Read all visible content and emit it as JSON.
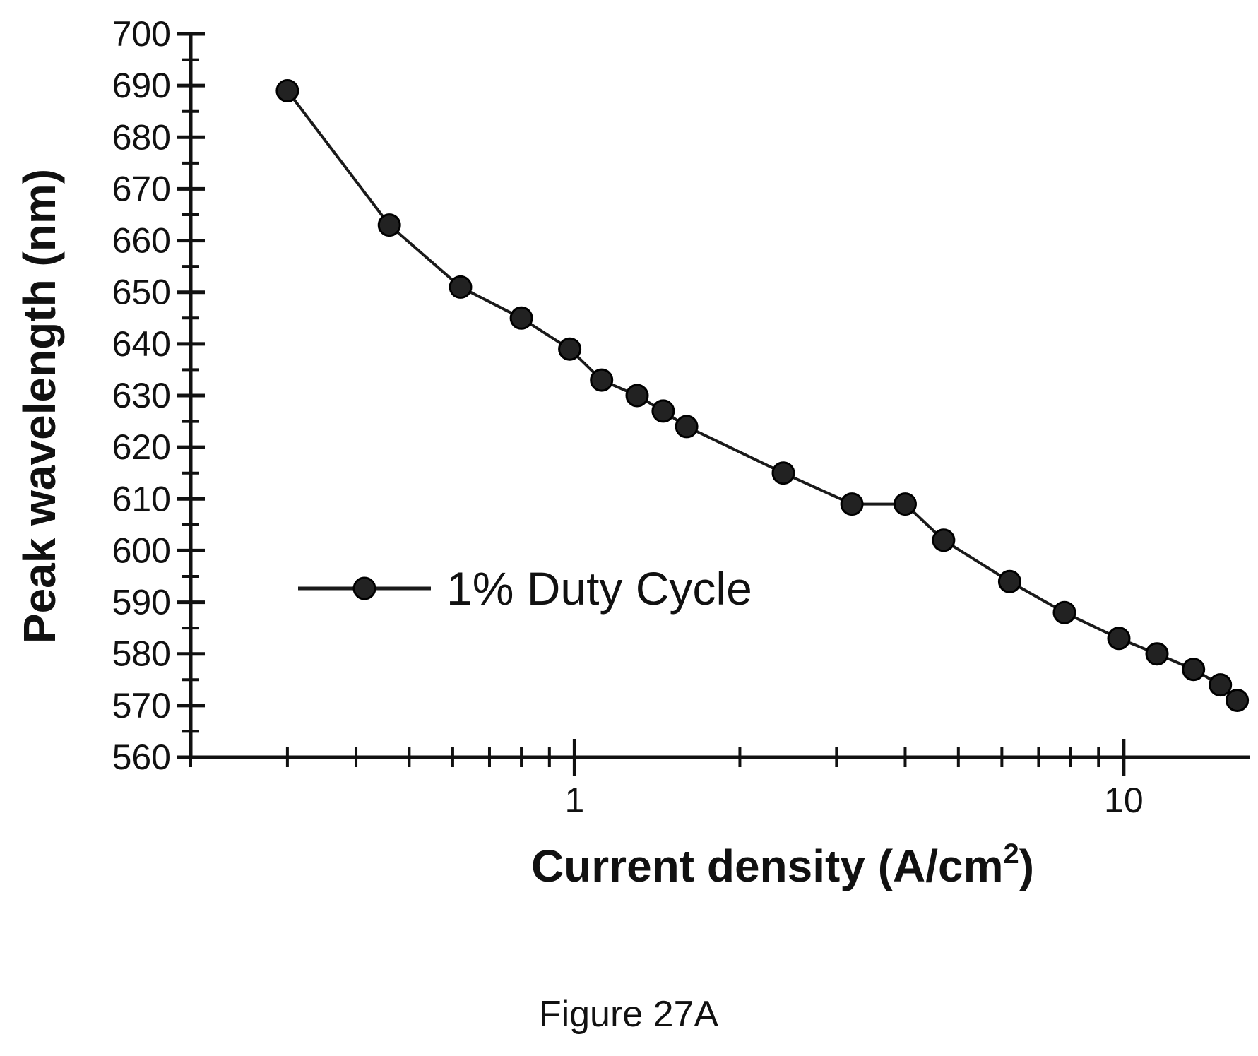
{
  "chart_data": {
    "type": "line",
    "xscale": "log",
    "xlabel": "Current density (A/cm",
    "xlabel_superscript": "2",
    "xlabel_suffix": ")",
    "ylabel": "Peak wavelength (nm)",
    "xlim": [
      0.2,
      17
    ],
    "ylim": [
      560,
      700
    ],
    "yticks": [
      560,
      570,
      580,
      590,
      600,
      610,
      620,
      630,
      640,
      650,
      660,
      670,
      680,
      690,
      700
    ],
    "xtick_labels": [
      {
        "value": 1,
        "label": "1"
      },
      {
        "value": 10,
        "label": "10"
      }
    ],
    "grid": false,
    "legend_position": "middle-left",
    "series": [
      {
        "name": "1% Duty Cycle",
        "color": "#1a1a1a",
        "marker": "circle",
        "x": [
          0.3,
          0.46,
          0.62,
          0.8,
          0.98,
          1.12,
          1.3,
          1.45,
          1.6,
          2.4,
          3.2,
          4.0,
          4.7,
          6.2,
          7.8,
          9.8,
          11.5,
          13.4,
          15.0,
          16.1
        ],
        "y": [
          689,
          663,
          651,
          645,
          639,
          633,
          630,
          627,
          624,
          615,
          609,
          609,
          602,
          594,
          588,
          583,
          580,
          577,
          574,
          571
        ]
      }
    ]
  },
  "caption": "Figure 27A"
}
